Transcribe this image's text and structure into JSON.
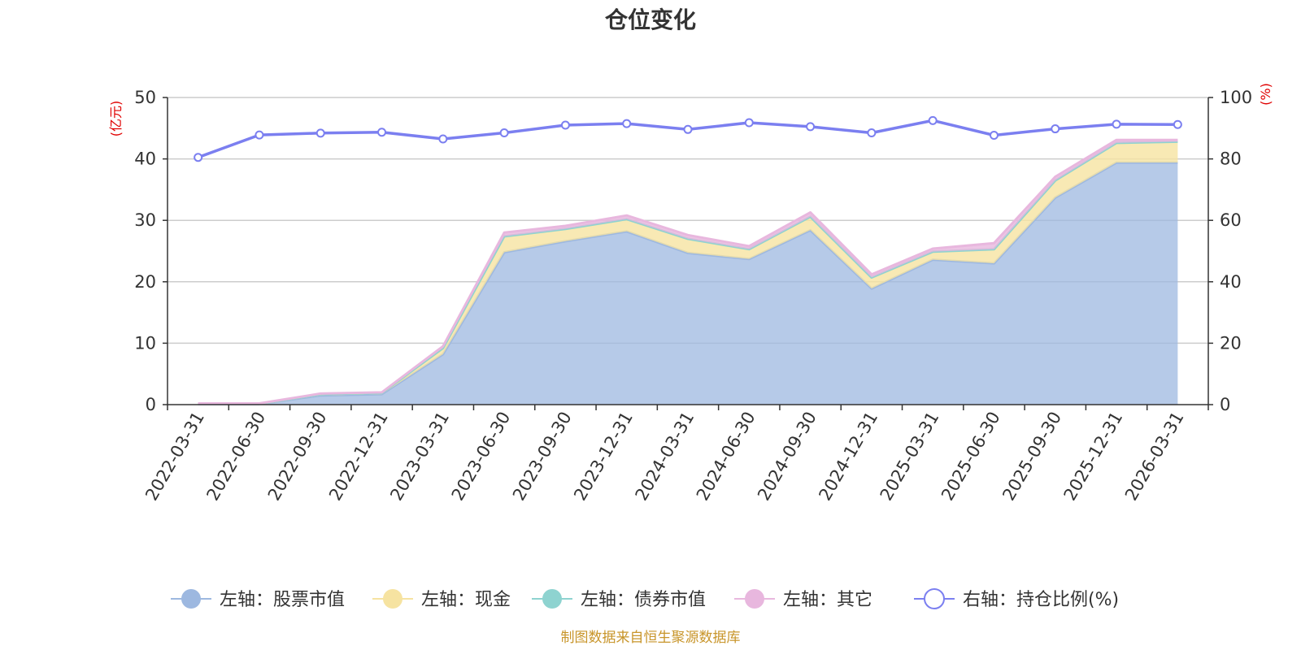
{
  "chart_data": {
    "type": "area",
    "title": "仓位变化",
    "y_left_unit": "(亿元)",
    "y_right_unit": "(%)",
    "ylim_left": [
      0,
      50
    ],
    "ylim_right": [
      0,
      100
    ],
    "yticks_left": [
      "0",
      "10",
      "20",
      "30",
      "40",
      "50"
    ],
    "yticks_right": [
      "0",
      "20",
      "40",
      "60",
      "80",
      "100"
    ],
    "grid": true,
    "legend_position": "bottom",
    "categories": [
      "2022-03-31",
      "2022-06-30",
      "2022-09-30",
      "2022-12-31",
      "2023-03-31",
      "2023-06-30",
      "2023-09-30",
      "2023-12-31",
      "2024-03-31",
      "2024-06-30",
      "2024-09-30",
      "2024-12-31",
      "2025-03-31",
      "2025-06-30",
      "2025-09-30",
      "2025-12-31",
      "2026-03-31"
    ],
    "series": [
      {
        "name": "左轴：股票市值",
        "axis": "left",
        "kind": "stacked-area",
        "color": "#9db8e0",
        "values": [
          0.1,
          0.1,
          1.5,
          1.7,
          8.2,
          24.8,
          26.6,
          28.2,
          24.7,
          23.7,
          28.4,
          18.9,
          23.6,
          23.0,
          33.7,
          39.4,
          39.4
        ]
      },
      {
        "name": "左轴：现金",
        "axis": "left",
        "kind": "stacked-area",
        "color": "#f6e3a1",
        "values": [
          0.05,
          0.05,
          0.2,
          0.2,
          1.0,
          2.6,
          2.0,
          2.0,
          2.3,
          1.6,
          2.2,
          1.8,
          1.3,
          2.3,
          2.8,
          3.2,
          3.4
        ]
      },
      {
        "name": "左轴：债券市值",
        "axis": "left",
        "kind": "stacked-area",
        "color": "#8ed3d0",
        "values": [
          0,
          0,
          0,
          0,
          0,
          0,
          0,
          0,
          0,
          0,
          0,
          0,
          0,
          0,
          0,
          0,
          0
        ]
      },
      {
        "name": "左轴：其它",
        "axis": "left",
        "kind": "stacked-area",
        "color": "#e8b7de",
        "values": [
          0.05,
          0.05,
          0.1,
          0.1,
          0.3,
          0.6,
          0.5,
          0.6,
          0.6,
          0.5,
          0.7,
          0.5,
          0.5,
          1.0,
          0.6,
          0.5,
          0.3
        ]
      },
      {
        "name": "右轴：持仓比例(%)",
        "axis": "right",
        "kind": "line",
        "color": "#7b7ff0",
        "values": [
          80.5,
          87.8,
          88.4,
          88.7,
          86.5,
          88.5,
          91.0,
          91.5,
          89.6,
          91.8,
          90.5,
          88.5,
          92.5,
          87.7,
          89.8,
          91.3,
          91.2
        ]
      }
    ]
  },
  "source_text": "制图数据来自恒生聚源数据库"
}
